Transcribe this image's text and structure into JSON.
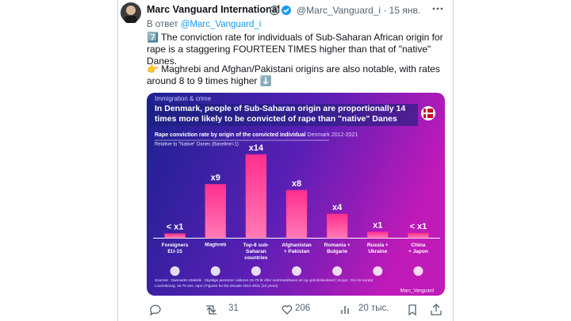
{
  "tweet": {
    "author": "Marc Vanguard International",
    "handle": "@Marc_Vanguard_i · 15 янв.",
    "reply_prefix": "В ответ",
    "reply_to": "@Marc_Vanguard_i",
    "paragraphs": [
      "7️⃣ The conviction rate for individuals of Sub-Saharan African origin for rape is a staggering FOURTEEN TIMES higher than that of \"native\" Danes.",
      "👉 Maghrebi and Afghan/Pakistani origins are also notable, with rates around 8 to 9 times higher ⬇️"
    ],
    "retweets": "31",
    "likes": "206",
    "views": "20 тыс."
  },
  "chart_data": {
    "type": "bar",
    "kicker": "Immigration & crime",
    "title": "In Denmark, people of Sub-Saharan origin are proportionally 14\ntimes more likely to be convicted of rape than \"native\" Danes",
    "subtitle": "Rape conviction rate by origin of the convicted individual",
    "subtitle_note": "Denmark 2012-2021",
    "axis_label": "Relative to \"Native\" Danes (Baseline=1)",
    "categories": [
      "Foreigners\nEU-15",
      "Maghreb",
      "Top-8 sub-\nSaharan\ncountries",
      "Afghanistan\n+ Pakistan",
      "Romania +\nBulgarie",
      "Russia +\nUkraine",
      "China\n+ Japon"
    ],
    "values": [
      0.7,
      9,
      14,
      8,
      4,
      1,
      0.8
    ],
    "value_labels": [
      "< x1",
      "x9",
      "x14",
      "x8",
      "x4",
      "x1",
      "< x1"
    ],
    "color": "#ff2f8e",
    "source": "Sources : Danmarks Statistik : Skyldige personer i alderen 15-79 år efter overtrædelsens art og oprindelsesland | Scope : EU-15 except\nLuxembourg, 15-79 ans, rape | Figures for the decade 2012-2021 (10 years)",
    "credit": "Marc_Vanguard"
  }
}
